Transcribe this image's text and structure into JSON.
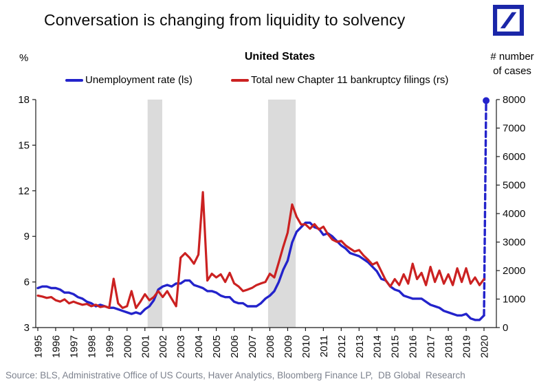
{
  "title": "Conversation is changing from liquidity to solvency",
  "logo": {
    "name": "deutsche-bank-logo",
    "color": "#1A26A8"
  },
  "header": {
    "left_axis_unit": "%",
    "chart_title": "United States",
    "right_axis_unit_line1": "# number",
    "right_axis_unit_line2": "of cases"
  },
  "legend": [
    {
      "label": "Unemployment rate (ls)",
      "color": "#2323CB"
    },
    {
      "label": "Total new Chapter 11 bankruptcy filings (rs)",
      "color": "#CB2121"
    }
  ],
  "source": "Source: BLS, Administrative Office of US Courts, Haver Analytics, Bloomberg Finance LP,  DB Global  Research",
  "chart_data": {
    "type": "line",
    "title": "United States",
    "xlabel": "",
    "left_axis": {
      "label": "%",
      "ticks": [
        3,
        6,
        9,
        12,
        15,
        18
      ],
      "range": [
        3,
        18
      ]
    },
    "right_axis": {
      "label": "# number of cases",
      "ticks": [
        0,
        1000,
        2000,
        3000,
        4000,
        5000,
        6000,
        7000,
        8000
      ],
      "range": [
        0,
        8000
      ]
    },
    "x_ticks": [
      1995,
      1996,
      1997,
      1998,
      1999,
      2000,
      2001,
      2002,
      2003,
      2004,
      2005,
      2006,
      2007,
      2008,
      2009,
      2010,
      2011,
      2012,
      2013,
      2014,
      2015,
      2016,
      2017,
      2018,
      2019,
      2020
    ],
    "x_range": [
      1995,
      2020.6
    ],
    "grid": false,
    "band_color": "#DBDBDB",
    "recession_bands": [
      [
        2001.15,
        2001.97
      ],
      [
        2007.9,
        2009.45
      ]
    ],
    "series": [
      {
        "name": "Unemployment rate (ls)",
        "axis": "left",
        "color": "#2323CB",
        "style": "solid",
        "width": 3.4,
        "points": [
          [
            1995,
            5.6
          ],
          [
            1995.25,
            5.7
          ],
          [
            1995.5,
            5.7
          ],
          [
            1995.75,
            5.6
          ],
          [
            1996,
            5.6
          ],
          [
            1996.25,
            5.5
          ],
          [
            1996.5,
            5.3
          ],
          [
            1996.75,
            5.3
          ],
          [
            1997,
            5.2
          ],
          [
            1997.25,
            5.0
          ],
          [
            1997.5,
            4.9
          ],
          [
            1997.75,
            4.7
          ],
          [
            1998,
            4.6
          ],
          [
            1998.25,
            4.4
          ],
          [
            1998.5,
            4.5
          ],
          [
            1998.75,
            4.4
          ],
          [
            1999,
            4.3
          ],
          [
            1999.25,
            4.3
          ],
          [
            1999.5,
            4.2
          ],
          [
            1999.75,
            4.1
          ],
          [
            2000,
            4.0
          ],
          [
            2000.25,
            3.9
          ],
          [
            2000.5,
            4.0
          ],
          [
            2000.75,
            3.9
          ],
          [
            2001,
            4.2
          ],
          [
            2001.25,
            4.4
          ],
          [
            2001.5,
            4.8
          ],
          [
            2001.75,
            5.5
          ],
          [
            2002,
            5.7
          ],
          [
            2002.25,
            5.8
          ],
          [
            2002.5,
            5.7
          ],
          [
            2002.75,
            5.9
          ],
          [
            2003,
            5.9
          ],
          [
            2003.25,
            6.1
          ],
          [
            2003.5,
            6.1
          ],
          [
            2003.75,
            5.8
          ],
          [
            2004,
            5.7
          ],
          [
            2004.25,
            5.6
          ],
          [
            2004.5,
            5.4
          ],
          [
            2004.75,
            5.4
          ],
          [
            2005,
            5.3
          ],
          [
            2005.25,
            5.1
          ],
          [
            2005.5,
            5.0
          ],
          [
            2005.75,
            5.0
          ],
          [
            2006,
            4.7
          ],
          [
            2006.25,
            4.6
          ],
          [
            2006.5,
            4.6
          ],
          [
            2006.75,
            4.4
          ],
          [
            2007,
            4.4
          ],
          [
            2007.25,
            4.4
          ],
          [
            2007.5,
            4.6
          ],
          [
            2007.75,
            4.9
          ],
          [
            2008,
            5.1
          ],
          [
            2008.25,
            5.4
          ],
          [
            2008.5,
            6.0
          ],
          [
            2008.75,
            6.8
          ],
          [
            2009,
            7.4
          ],
          [
            2009.25,
            8.6
          ],
          [
            2009.5,
            9.3
          ],
          [
            2009.75,
            9.6
          ],
          [
            2010,
            9.9
          ],
          [
            2010.25,
            9.9
          ],
          [
            2010.5,
            9.6
          ],
          [
            2010.75,
            9.5
          ],
          [
            2011,
            9.1
          ],
          [
            2011.25,
            9.2
          ],
          [
            2011.5,
            9.0
          ],
          [
            2011.75,
            8.7
          ],
          [
            2012,
            8.4
          ],
          [
            2012.25,
            8.2
          ],
          [
            2012.5,
            7.9
          ],
          [
            2012.75,
            7.8
          ],
          [
            2013,
            7.7
          ],
          [
            2013.25,
            7.5
          ],
          [
            2013.5,
            7.3
          ],
          [
            2013.75,
            7.0
          ],
          [
            2014,
            6.7
          ],
          [
            2014.25,
            6.2
          ],
          [
            2014.5,
            6.1
          ],
          [
            2014.75,
            5.7
          ],
          [
            2015,
            5.5
          ],
          [
            2015.25,
            5.4
          ],
          [
            2015.5,
            5.1
          ],
          [
            2015.75,
            5.0
          ],
          [
            2016,
            4.9
          ],
          [
            2016.25,
            4.9
          ],
          [
            2016.5,
            4.9
          ],
          [
            2016.75,
            4.7
          ],
          [
            2017,
            4.5
          ],
          [
            2017.25,
            4.4
          ],
          [
            2017.5,
            4.3
          ],
          [
            2017.75,
            4.1
          ],
          [
            2018,
            4.0
          ],
          [
            2018.25,
            3.9
          ],
          [
            2018.5,
            3.8
          ],
          [
            2018.75,
            3.8
          ],
          [
            2019,
            3.9
          ],
          [
            2019.25,
            3.6
          ],
          [
            2019.5,
            3.5
          ],
          [
            2019.75,
            3.5
          ],
          [
            2020,
            3.8
          ]
        ]
      },
      {
        "name": "Unemployment rate 2020 spike (dashed)",
        "axis": "left",
        "color": "#2323CB",
        "style": "dashed",
        "width": 3.4,
        "end_marker": true,
        "points": [
          [
            2020,
            3.8
          ],
          [
            2020.12,
            17.93
          ]
        ]
      },
      {
        "name": "Total new Chapter 11 bankruptcy filings (rs)",
        "axis": "right",
        "color": "#CB2121",
        "style": "solid",
        "width": 3.2,
        "points": [
          [
            1995,
            1120
          ],
          [
            1995.25,
            1090
          ],
          [
            1995.5,
            1040
          ],
          [
            1995.75,
            1070
          ],
          [
            1996,
            960
          ],
          [
            1996.25,
            910
          ],
          [
            1996.5,
            990
          ],
          [
            1996.75,
            850
          ],
          [
            1997,
            910
          ],
          [
            1997.25,
            850
          ],
          [
            1997.5,
            800
          ],
          [
            1997.75,
            830
          ],
          [
            1998,
            750
          ],
          [
            1998.25,
            800
          ],
          [
            1998.5,
            720
          ],
          [
            1998.75,
            750
          ],
          [
            1999,
            690
          ],
          [
            1999.25,
            1710
          ],
          [
            1999.5,
            850
          ],
          [
            1999.75,
            690
          ],
          [
            2000,
            750
          ],
          [
            2000.25,
            1280
          ],
          [
            2000.5,
            690
          ],
          [
            2000.75,
            910
          ],
          [
            2001,
            1170
          ],
          [
            2001.25,
            960
          ],
          [
            2001.5,
            1070
          ],
          [
            2001.75,
            1280
          ],
          [
            2002,
            1070
          ],
          [
            2002.25,
            1280
          ],
          [
            2002.5,
            1010
          ],
          [
            2002.75,
            750
          ],
          [
            2003,
            2450
          ],
          [
            2003.25,
            2610
          ],
          [
            2003.5,
            2450
          ],
          [
            2003.75,
            2240
          ],
          [
            2004,
            2560
          ],
          [
            2004.25,
            4750
          ],
          [
            2004.5,
            1650
          ],
          [
            2004.75,
            1890
          ],
          [
            2005,
            1760
          ],
          [
            2005.25,
            1870
          ],
          [
            2005.5,
            1600
          ],
          [
            2005.75,
            1920
          ],
          [
            2006,
            1550
          ],
          [
            2006.25,
            1440
          ],
          [
            2006.5,
            1280
          ],
          [
            2006.75,
            1330
          ],
          [
            2007,
            1390
          ],
          [
            2007.25,
            1490
          ],
          [
            2007.5,
            1550
          ],
          [
            2007.75,
            1600
          ],
          [
            2008,
            1890
          ],
          [
            2008.25,
            1760
          ],
          [
            2008.5,
            2290
          ],
          [
            2008.75,
            2830
          ],
          [
            2009,
            3330
          ],
          [
            2009.25,
            4320
          ],
          [
            2009.5,
            3890
          ],
          [
            2009.75,
            3620
          ],
          [
            2010,
            3620
          ],
          [
            2010.25,
            3470
          ],
          [
            2010.5,
            3630
          ],
          [
            2010.75,
            3440
          ],
          [
            2011,
            3540
          ],
          [
            2011.25,
            3280
          ],
          [
            2011.5,
            3090
          ],
          [
            2011.75,
            3010
          ],
          [
            2012,
            3040
          ],
          [
            2012.25,
            2880
          ],
          [
            2012.5,
            2770
          ],
          [
            2012.75,
            2670
          ],
          [
            2013,
            2720
          ],
          [
            2013.25,
            2530
          ],
          [
            2013.5,
            2380
          ],
          [
            2013.75,
            2210
          ],
          [
            2014,
            2290
          ],
          [
            2014.25,
            1970
          ],
          [
            2014.5,
            1650
          ],
          [
            2014.75,
            1440
          ],
          [
            2015,
            1700
          ],
          [
            2015.25,
            1490
          ],
          [
            2015.5,
            1870
          ],
          [
            2015.75,
            1540
          ],
          [
            2016,
            2240
          ],
          [
            2016.25,
            1700
          ],
          [
            2016.5,
            1920
          ],
          [
            2016.75,
            1490
          ],
          [
            2017,
            2130
          ],
          [
            2017.25,
            1600
          ],
          [
            2017.5,
            2000
          ],
          [
            2017.75,
            1540
          ],
          [
            2018,
            1870
          ],
          [
            2018.25,
            1490
          ],
          [
            2018.5,
            2080
          ],
          [
            2018.75,
            1600
          ],
          [
            2019,
            2080
          ],
          [
            2019.25,
            1540
          ],
          [
            2019.5,
            1760
          ],
          [
            2019.75,
            1490
          ],
          [
            2020,
            1700
          ]
        ]
      }
    ]
  }
}
